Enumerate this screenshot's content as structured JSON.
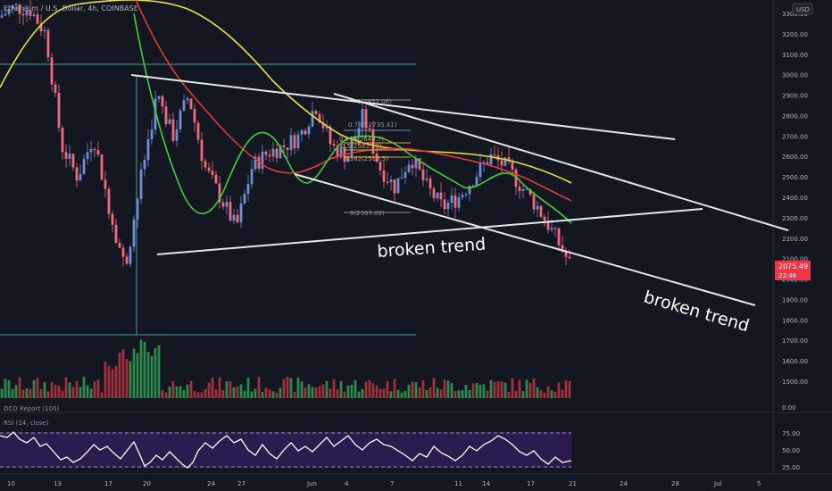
{
  "header": {
    "symbol": "Ethereum / U.S. Dollar, 4h, COINBASE",
    "currency": "USD"
  },
  "indicators": {
    "volume_label": "DCO Report (100)",
    "rsi_label": "RSI (14, close)"
  },
  "annotations": {
    "broken_trend_1": "broken trend",
    "broken_trend_2": "broken trend",
    "fib_1": "1(2852.06)",
    "fib_2": "0.786(2735.41)",
    "fib_3": "0(2307.02)",
    "fib_mid_a": "0.618(2640.7)",
    "fib_mid_b": "0.5(2583.99)",
    "fib_mid_c": "0.382(2519.5)"
  },
  "current_price": {
    "value": "2075.49",
    "countdown": "22:46"
  },
  "colors": {
    "background": "#131722",
    "candle_up": "#6d8fd6",
    "candle_down": "#f2697a",
    "ma_yellow": "#e8e337",
    "ma_red": "#e53935",
    "ma_green": "#3fd139",
    "trendline": "#e6e6e6",
    "rsi_band": "#2a1c4e",
    "price_tag": "#f23645"
  },
  "chart_data": {
    "type": "candlestick",
    "y_axis": {
      "ticks": [
        "3300.00",
        "3200.00",
        "3100.00",
        "3000.00",
        "2900.00",
        "2800.00",
        "2700.00",
        "2600.00",
        "2500.00",
        "2400.00",
        "2300.00",
        "2200.00",
        "2100.00",
        "2000.00",
        "1900.00",
        "1800.00",
        "1700.00",
        "1600.00",
        "1500.00"
      ],
      "range": [
        1450,
        3380
      ]
    },
    "volume_axis": {
      "ticks": [
        "0.00"
      ]
    },
    "rsi_axis": {
      "ticks": [
        "75.00",
        "50.00",
        "25.00"
      ],
      "range": [
        20,
        80
      ]
    },
    "x_axis": {
      "ticks": [
        "10",
        "13",
        "17",
        "20",
        "24",
        "27",
        "Jun",
        "4",
        "7",
        "11",
        "14",
        "17",
        "21",
        "24",
        "28",
        "Jul",
        "5"
      ]
    },
    "horizontal_levels": [
      3055,
      1724
    ],
    "price_path": [
      {
        "d": "10",
        "p": 3280
      },
      {
        "d": "13",
        "p": 3330
      },
      {
        "d": "17",
        "p": 3320
      },
      {
        "d": "18",
        "p": 3200
      },
      {
        "d": "19",
        "p": 2650
      },
      {
        "d": "20",
        "p": 2500
      },
      {
        "d": "21",
        "p": 2700
      },
      {
        "d": "22",
        "p": 2350
      },
      {
        "d": "23",
        "p": 2050
      },
      {
        "d": "24",
        "p": 2500
      },
      {
        "d": "25",
        "p": 2900
      },
      {
        "d": "26",
        "p": 2700
      },
      {
        "d": "27",
        "p": 2900
      },
      {
        "d": "28",
        "p": 2550
      },
      {
        "d": "29",
        "p": 2400
      },
      {
        "d": "30",
        "p": 2250
      },
      {
        "d": "31",
        "p": 2550
      },
      {
        "d": "Jun",
        "p": 2620
      },
      {
        "d": "2",
        "p": 2650
      },
      {
        "d": "3",
        "p": 2700
      },
      {
        "d": "4",
        "p": 2850
      },
      {
        "d": "5",
        "p": 2650
      },
      {
        "d": "6",
        "p": 2600
      },
      {
        "d": "7",
        "p": 2800
      },
      {
        "d": "8",
        "p": 2550
      },
      {
        "d": "9",
        "p": 2450
      },
      {
        "d": "10",
        "p": 2600
      },
      {
        "d": "11",
        "p": 2450
      },
      {
        "d": "12",
        "p": 2350
      },
      {
        "d": "13",
        "p": 2400
      },
      {
        "d": "14",
        "p": 2500
      },
      {
        "d": "15",
        "p": 2600
      },
      {
        "d": "16",
        "p": 2550
      },
      {
        "d": "17",
        "p": 2450
      },
      {
        "d": "18",
        "p": 2350
      },
      {
        "d": "19",
        "p": 2220
      },
      {
        "d": "20",
        "p": 2075
      }
    ]
  }
}
